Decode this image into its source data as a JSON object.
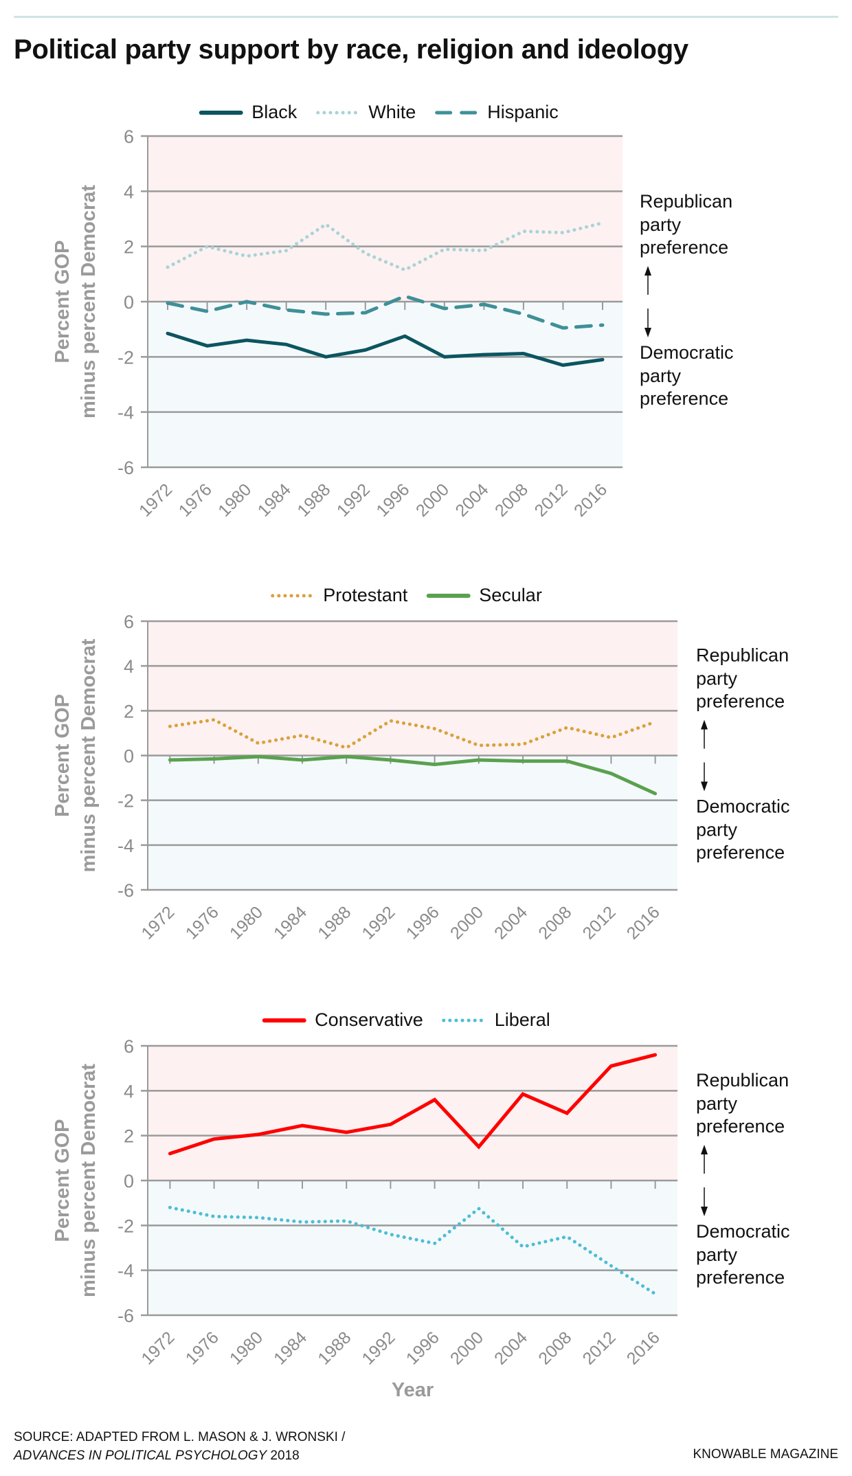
{
  "title": "Political party support by race, religion and ideology",
  "colors": {
    "republican_bg": "#fdf1f1",
    "democratic_bg": "#f4fafb",
    "grid": "#9a9a9a",
    "axis_text": "#8a8a8a"
  },
  "annotations": {
    "republican": [
      "Republican",
      "party",
      "preference"
    ],
    "democratic": [
      "Democratic",
      "party",
      "preference"
    ]
  },
  "chart_data": [
    {
      "type": "line",
      "ylabel": [
        "Percent GOP",
        "minus percent Democrat"
      ],
      "xlabel": "",
      "x": [
        1972,
        1976,
        1980,
        1984,
        1988,
        1992,
        1996,
        2000,
        2004,
        2008,
        2012,
        2016
      ],
      "ylim": [
        -6,
        6
      ],
      "yticks": [
        6,
        4,
        2,
        0,
        -2,
        -4,
        -6
      ],
      "grid": true,
      "legend": "top",
      "series": [
        {
          "name": "Black",
          "style": "solid",
          "color": "#0b5560",
          "values": [
            -1.15,
            -1.6,
            -1.4,
            -1.55,
            -2.0,
            -1.75,
            -1.25,
            -2.0,
            -1.92,
            -1.88,
            -2.3,
            -2.1
          ]
        },
        {
          "name": "White",
          "style": "dotted",
          "color": "#a8d3d6",
          "values": [
            1.25,
            2.0,
            1.65,
            1.85,
            2.8,
            1.75,
            1.15,
            1.9,
            1.85,
            2.55,
            2.5,
            2.85
          ]
        },
        {
          "name": "Hispanic",
          "style": "dashed",
          "color": "#3f8f98",
          "values": [
            -0.05,
            -0.35,
            0.0,
            -0.3,
            -0.45,
            -0.4,
            0.2,
            -0.25,
            -0.1,
            -0.45,
            -0.95,
            -0.85
          ]
        }
      ]
    },
    {
      "type": "line",
      "ylabel": [
        "Percent GOP",
        "minus percent Democrat"
      ],
      "xlabel": "",
      "x": [
        1972,
        1976,
        1980,
        1984,
        1988,
        1992,
        1996,
        2000,
        2004,
        2008,
        2012,
        2016
      ],
      "ylim": [
        -6,
        6
      ],
      "yticks": [
        6,
        4,
        2,
        0,
        -2,
        -4,
        -6
      ],
      "grid": true,
      "legend": "top",
      "series": [
        {
          "name": "Protestant",
          "style": "dotted",
          "color": "#d9a13b",
          "values": [
            1.3,
            1.6,
            0.55,
            0.9,
            0.35,
            1.55,
            1.2,
            0.45,
            0.5,
            1.25,
            0.8,
            1.5
          ]
        },
        {
          "name": "Secular",
          "style": "solid",
          "color": "#5aa14f",
          "values": [
            -0.2,
            -0.15,
            -0.05,
            -0.2,
            -0.05,
            -0.2,
            -0.4,
            -0.2,
            -0.25,
            -0.25,
            -0.8,
            -1.7
          ]
        }
      ]
    },
    {
      "type": "line",
      "ylabel": [
        "Percent GOP",
        "minus percent Democrat"
      ],
      "xlabel": "Year",
      "x": [
        1972,
        1976,
        1980,
        1984,
        1988,
        1992,
        1996,
        2000,
        2004,
        2008,
        2012,
        2016
      ],
      "ylim": [
        -6,
        6
      ],
      "yticks": [
        6,
        4,
        2,
        0,
        -2,
        -4,
        -6
      ],
      "grid": true,
      "legend": "top",
      "series": [
        {
          "name": "Conservative",
          "style": "solid",
          "color": "#ff0000",
          "values": [
            1.2,
            1.85,
            2.05,
            2.45,
            2.15,
            2.5,
            3.6,
            1.5,
            3.85,
            3.0,
            5.1,
            5.6
          ]
        },
        {
          "name": "Liberal",
          "style": "dotted",
          "color": "#4fbcd6",
          "values": [
            -1.2,
            -1.6,
            -1.65,
            -1.85,
            -1.8,
            -2.4,
            -2.8,
            -1.25,
            -2.95,
            -2.5,
            -3.8,
            -5.05
          ]
        }
      ]
    }
  ],
  "footer": {
    "source_line1": "SOURCE: ADAPTED FROM L. MASON & J. WRONSKI /",
    "source_journal": "ADVANCES IN POLITICAL PSYCHOLOGY",
    "source_year": " 2018",
    "brand": "KNOWABLE MAGAZINE"
  }
}
